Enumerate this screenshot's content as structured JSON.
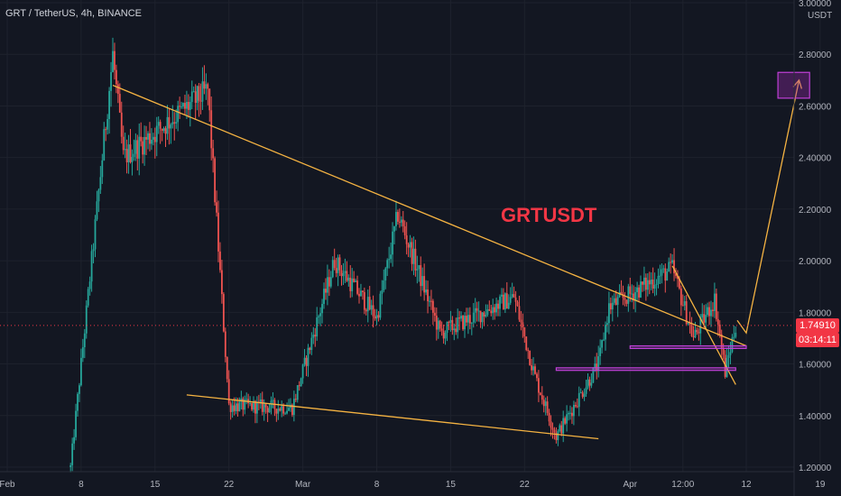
{
  "header": {
    "symbol_title": "GRT / TetherUS, 4h, BINANCE"
  },
  "annotation": {
    "text": "GRTUSDT"
  },
  "price_axis": {
    "currency": "USDT",
    "last_price": "1.74910",
    "countdown": "03:14:11"
  },
  "colors": {
    "background": "#131722",
    "grid": "#1e222d",
    "candle_up": "#26a69a",
    "candle_down": "#ef5350",
    "trendline": "#f5b342",
    "zone": "#c040d8",
    "last_price": "#f23645",
    "axis_text": "#b2b5be"
  },
  "chart_data": {
    "type": "candlestick",
    "title": "GRT / TetherUS, 4h, BINANCE",
    "y_axis": {
      "label": "USDT",
      "ticks": [
        "3.00000",
        "2.80000",
        "2.60000",
        "2.40000",
        "2.20000",
        "2.00000",
        "1.80000",
        "1.60000",
        "1.40000",
        "1.20000"
      ],
      "range": [
        1.2,
        3.0
      ]
    },
    "x_axis": {
      "ticks": [
        "Feb",
        "8",
        "15",
        "22",
        "Mar",
        "8",
        "15",
        "22",
        "Apr",
        "12:00",
        "12",
        "19"
      ]
    },
    "last_price": 1.7491,
    "grid": true,
    "key_points": [
      {
        "date": "Feb 7",
        "price": 1.2
      },
      {
        "date": "Feb 11",
        "price": 2.8
      },
      {
        "date": "Feb 12",
        "price": 2.4
      },
      {
        "date": "Feb 20",
        "price": 2.66
      },
      {
        "date": "Feb 22",
        "price": 1.44
      },
      {
        "date": "Feb 28",
        "price": 1.43
      },
      {
        "date": "Mar 4",
        "price": 2.0
      },
      {
        "date": "Mar 8",
        "price": 1.78
      },
      {
        "date": "Mar 10",
        "price": 2.18
      },
      {
        "date": "Mar 14",
        "price": 1.72
      },
      {
        "date": "Mar 21",
        "price": 1.86
      },
      {
        "date": "Mar 23",
        "price": 1.55
      },
      {
        "date": "Mar 25",
        "price": 1.32
      },
      {
        "date": "Mar 29",
        "price": 1.6
      },
      {
        "date": "Mar 30",
        "price": 1.82
      },
      {
        "date": "Apr 5",
        "price": 1.97
      },
      {
        "date": "Apr 7",
        "price": 1.7
      },
      {
        "date": "Apr 9",
        "price": 1.85
      },
      {
        "date": "Apr 10",
        "price": 1.57
      },
      {
        "date": "Apr 11",
        "price": 1.75
      }
    ],
    "annotations": [
      {
        "type": "trendline",
        "from": {
          "date": "Feb 11",
          "price": 2.68
        },
        "to": {
          "date": "Apr 12",
          "price": 1.67
        }
      },
      {
        "type": "trendline",
        "from": {
          "date": "Feb 18",
          "price": 1.48
        },
        "to": {
          "date": "Mar 29",
          "price": 1.31
        }
      },
      {
        "type": "trendline",
        "from": {
          "date": "Apr 5",
          "price": 1.98
        },
        "to": {
          "date": "Apr 11",
          "price": 1.52
        }
      },
      {
        "type": "zone",
        "price_range": [
          1.575,
          1.585
        ],
        "from": "Mar 25",
        "to": "Apr 11"
      },
      {
        "type": "zone",
        "price_range": [
          1.66,
          1.67
        ],
        "from": "Apr 1",
        "to": "Apr 12"
      },
      {
        "type": "projection",
        "from": {
          "date": "Apr 12",
          "price": 1.72
        },
        "to": {
          "date": "Apr 17",
          "price": 2.7
        }
      },
      {
        "type": "target_box",
        "price_range": [
          2.63,
          2.73
        ],
        "from": "Apr 15",
        "to": "Apr 18"
      }
    ]
  }
}
